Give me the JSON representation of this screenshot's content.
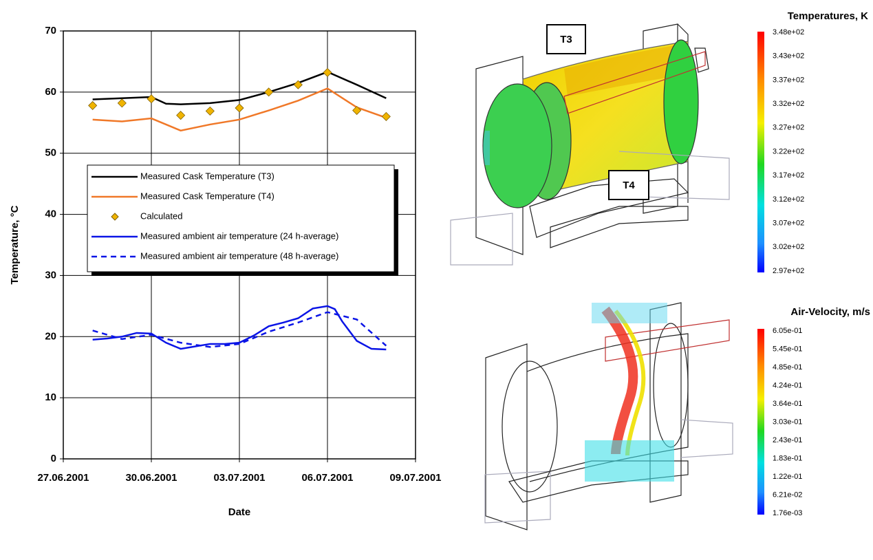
{
  "chart_data": {
    "type": "line",
    "ylabel": "Temperature, °C",
    "xlabel": "Date",
    "xlim": [
      "2001-06-27",
      "2001-07-09"
    ],
    "xticks": [
      {
        "value": "2001-06-27",
        "label": "27.06.2001"
      },
      {
        "value": "2001-06-30",
        "label": "30.06.2001"
      },
      {
        "value": "2001-07-03",
        "label": "03.07.2001"
      },
      {
        "value": "2001-07-06",
        "label": "06.07.2001"
      },
      {
        "value": "2001-07-09",
        "label": "09.07.2001"
      }
    ],
    "ylim": [
      0,
      70
    ],
    "yticks": [
      0,
      10,
      20,
      30,
      40,
      50,
      60,
      70
    ],
    "grid": true,
    "series": [
      {
        "name": "Measured Cask Temperature (T3)",
        "color": "#000000",
        "style": "line",
        "x": [
          "2001-06-28",
          "2001-06-29",
          "2001-06-30",
          "2001-06-30T12:00",
          "2001-07-01",
          "2001-07-02",
          "2001-07-03",
          "2001-07-04",
          "2001-07-05",
          "2001-07-06",
          "2001-07-07",
          "2001-07-08"
        ],
        "values": [
          58.8,
          59.0,
          59.2,
          58.1,
          58.0,
          58.2,
          58.7,
          60.0,
          61.5,
          63.3,
          61.2,
          59.0
        ]
      },
      {
        "name": "Measured Cask Temperature (T4)",
        "color": "#f07828",
        "style": "line",
        "x": [
          "2001-06-28",
          "2001-06-29",
          "2001-06-30",
          "2001-07-01",
          "2001-07-02",
          "2001-07-03",
          "2001-07-04",
          "2001-07-05",
          "2001-07-06",
          "2001-07-07",
          "2001-07-08"
        ],
        "values": [
          55.5,
          55.2,
          55.7,
          53.7,
          54.7,
          55.5,
          57.0,
          58.6,
          60.6,
          57.5,
          55.8
        ]
      },
      {
        "name": "Calculated",
        "color": "#f0b400",
        "style": "markers",
        "x": [
          "2001-06-28",
          "2001-06-29",
          "2001-06-30",
          "2001-07-01",
          "2001-07-02",
          "2001-07-03",
          "2001-07-04",
          "2001-07-05",
          "2001-07-06",
          "2001-07-07",
          "2001-07-08"
        ],
        "values": [
          57.8,
          58.2,
          58.9,
          56.2,
          56.9,
          57.4,
          60.0,
          61.2,
          63.2,
          57.0,
          56.0
        ]
      },
      {
        "name": "Measured ambient air temperature (24 h-average)",
        "color": "#0a14e6",
        "style": "line",
        "x": [
          "2001-06-28",
          "2001-06-28T12:00",
          "2001-06-29",
          "2001-06-29T12:00",
          "2001-06-30",
          "2001-06-30T12:00",
          "2001-07-01",
          "2001-07-01T12:00",
          "2001-07-02",
          "2001-07-02T12:00",
          "2001-07-03",
          "2001-07-03T12:00",
          "2001-07-04",
          "2001-07-04T12:00",
          "2001-07-05",
          "2001-07-05T12:00",
          "2001-07-06",
          "2001-07-06T06:00",
          "2001-07-06T12:00",
          "2001-07-07",
          "2001-07-07T12:00",
          "2001-07-08"
        ],
        "values": [
          19.5,
          19.7,
          20.0,
          20.6,
          20.5,
          19.0,
          18.0,
          18.4,
          18.8,
          18.8,
          19.0,
          20.2,
          21.7,
          22.3,
          23.0,
          24.6,
          25.0,
          24.5,
          22.5,
          19.3,
          18.0,
          17.9
        ]
      },
      {
        "name": "Measured ambient air temperature (48 h-average)",
        "color": "#0a14e6",
        "style": "dashed",
        "x": [
          "2001-06-28",
          "2001-06-29",
          "2001-06-30",
          "2001-07-01",
          "2001-07-02",
          "2001-07-03",
          "2001-07-04",
          "2001-07-05",
          "2001-07-06",
          "2001-07-07",
          "2001-07-08"
        ],
        "values": [
          21.0,
          19.6,
          20.3,
          19.0,
          18.3,
          18.8,
          20.8,
          22.3,
          24.0,
          22.8,
          18.5
        ]
      }
    ]
  },
  "figures": {
    "temperature": {
      "title": "Temperatures, K",
      "labels": [
        "3.48e+02",
        "3.43e+02",
        "3.37e+02",
        "3.32e+02",
        "3.27e+02",
        "3.22e+02",
        "3.17e+02",
        "3.12e+02",
        "3.07e+02",
        "3.02e+02",
        "2.97e+02"
      ],
      "markers": [
        "T3",
        "T4"
      ]
    },
    "velocity": {
      "title": "Air-Velocity, m/s",
      "labels": [
        "6.05e-01",
        "5.45e-01",
        "4.85e-01",
        "4.24e-01",
        "3.64e-01",
        "3.03e-01",
        "2.43e-01",
        "1.83e-01",
        "1.22e-01",
        "6.21e-02",
        "1.76e-03"
      ]
    }
  }
}
